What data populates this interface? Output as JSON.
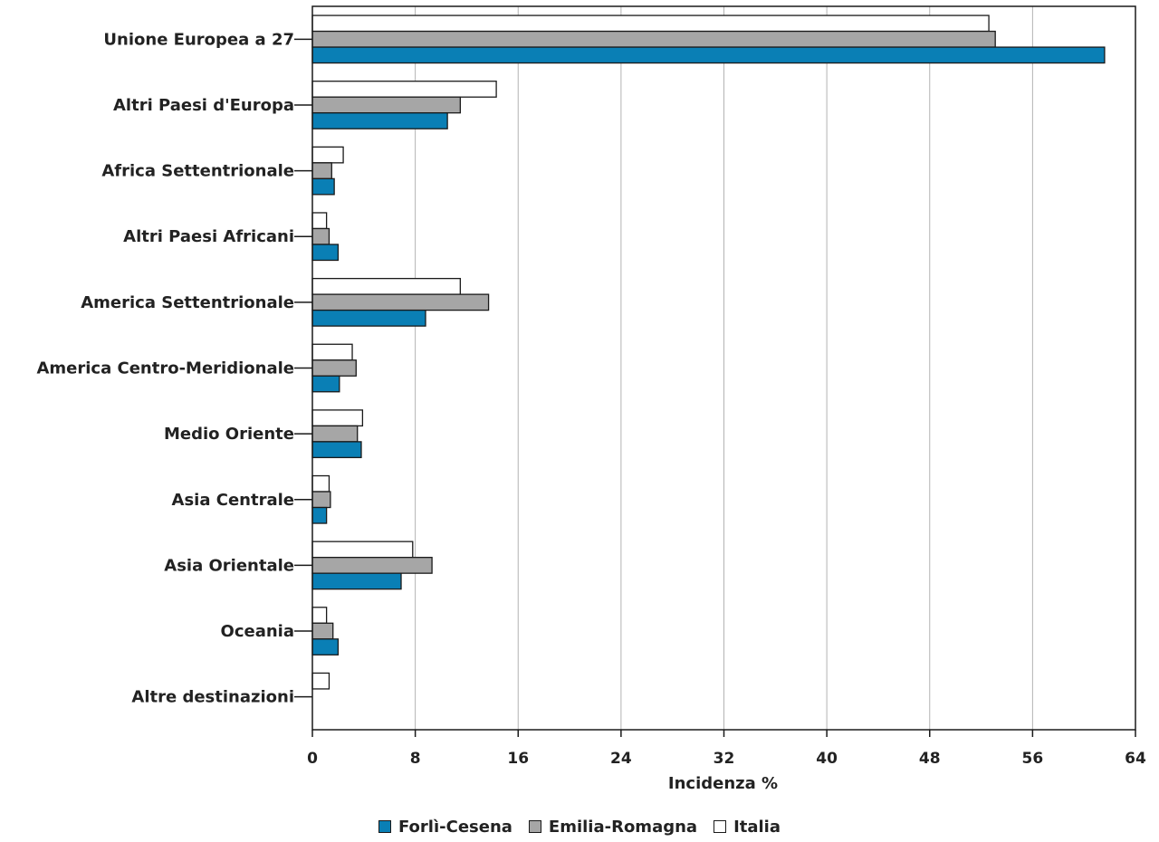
{
  "chart_data": {
    "type": "bar",
    "orientation": "horizontal",
    "categories": [
      "Unione Europea a 27",
      "Altri Paesi d'Europa",
      "Africa Settentrionale",
      "Altri Paesi Africani",
      "America Settentrionale",
      "America Centro-Meridionale",
      "Medio Oriente",
      "Asia Centrale",
      "Asia Orientale",
      "Oceania",
      "Altre destinazioni"
    ],
    "series": [
      {
        "name": "Forlì-Cesena",
        "color": "#0a7fb5",
        "values": [
          61.6,
          10.5,
          1.7,
          2.0,
          8.8,
          2.1,
          3.8,
          1.1,
          6.9,
          2.0,
          0.0
        ]
      },
      {
        "name": "Emilia-Romagna",
        "color": "#a6a6a6",
        "values": [
          53.1,
          11.5,
          1.5,
          1.3,
          13.7,
          3.4,
          3.5,
          1.4,
          9.3,
          1.6,
          0.0
        ]
      },
      {
        "name": "Italia",
        "color": "#ffffff",
        "values": [
          52.6,
          14.3,
          2.4,
          1.1,
          11.5,
          3.1,
          3.9,
          1.3,
          7.8,
          1.1,
          1.3
        ]
      }
    ],
    "title": "",
    "xlabel": "Incidenza %",
    "ylabel": "",
    "xlim": [
      0,
      64
    ],
    "xticks": [
      0,
      8,
      16,
      24,
      32,
      40,
      48,
      56,
      64
    ],
    "grid": true,
    "legend_position": "bottom-center"
  }
}
